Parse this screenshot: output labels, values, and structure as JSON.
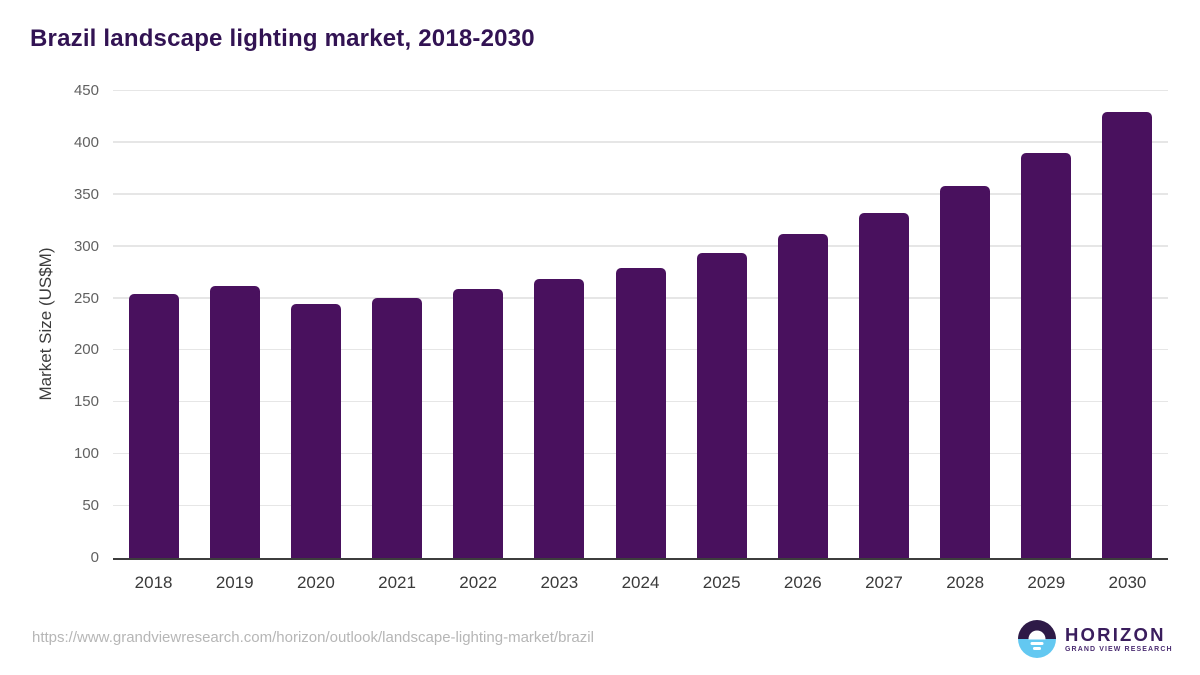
{
  "page": {
    "background_color": "#ffffff"
  },
  "chart_data": {
    "type": "bar",
    "title": "Brazil landscape lighting market, 2018-2030",
    "xlabel": "",
    "ylabel": "Market Size (US$M)",
    "categories": [
      "2018",
      "2019",
      "2020",
      "2021",
      "2022",
      "2023",
      "2024",
      "2025",
      "2026",
      "2027",
      "2028",
      "2029",
      "2030"
    ],
    "values": [
      254,
      262,
      245,
      251,
      259,
      269,
      279,
      294,
      312,
      332,
      358,
      390,
      430
    ],
    "ylim": [
      0,
      450
    ],
    "yticks": [
      0,
      50,
      100,
      150,
      200,
      250,
      300,
      350,
      400,
      450
    ],
    "grid": "horizontal-light-gray",
    "legend": "none",
    "bar_color": "#49115e",
    "title_color": "#321353",
    "axis_line_color": "#3d3d3d"
  },
  "footer": {
    "source_url": "https://www.grandviewresearch.com/horizon/outlook/landscape-lighting-market/brazil",
    "logo": {
      "icon": "sun-over-horizon-circle",
      "icon_top_color": "#2e1a47",
      "icon_bottom_color": "#63c8f1",
      "name": "HORIZON",
      "subtitle": "GRAND VIEW RESEARCH"
    }
  }
}
